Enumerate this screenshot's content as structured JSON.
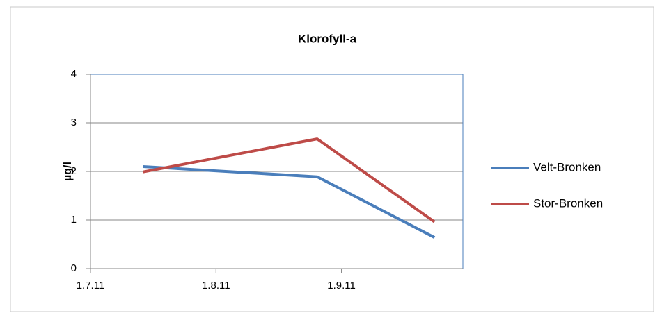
{
  "chart_data": {
    "type": "line",
    "title": "Klorofyll-a",
    "y_label": "µg/l",
    "x": [
      "2011-07-14",
      "2011-08-26",
      "2011-09-24"
    ],
    "xlim": [
      "2011-07-01",
      "2011-10-01"
    ],
    "xticks": [
      {
        "value": "2011-07-01",
        "label": "1.7.11"
      },
      {
        "value": "2011-08-01",
        "label": "1.8.11"
      },
      {
        "value": "2011-09-01",
        "label": "1.9.11"
      }
    ],
    "ylim": [
      0,
      4
    ],
    "yticks": [
      0,
      1,
      2,
      3,
      4
    ],
    "grid": true,
    "legend": "right",
    "series": [
      {
        "name": "Velt-Bronken",
        "color": "#4a7ebb",
        "values": [
          2.1,
          1.89,
          0.64
        ]
      },
      {
        "name": "Stor-Bronken",
        "color": "#be4b48",
        "values": [
          1.99,
          2.67,
          0.96
        ]
      }
    ]
  }
}
